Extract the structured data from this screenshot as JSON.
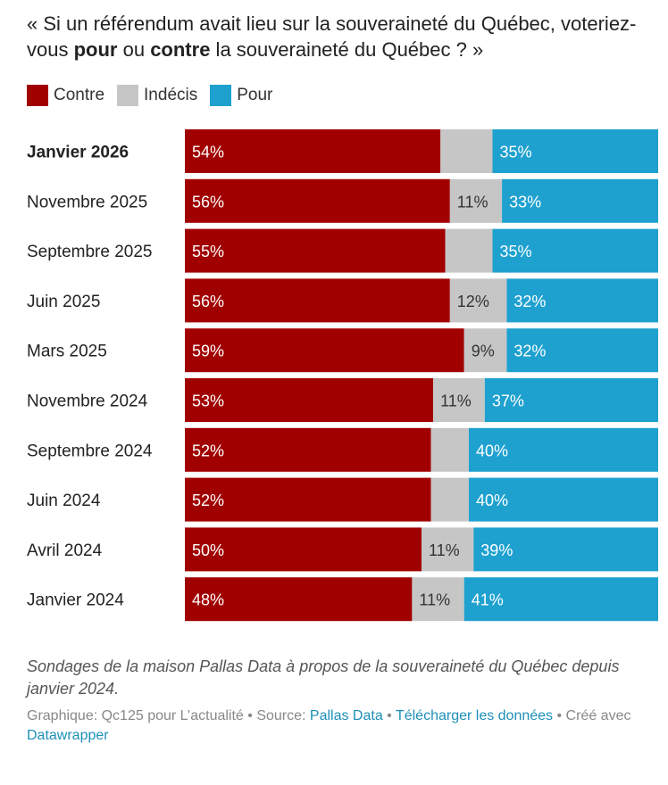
{
  "title": {
    "part1": "« Si un référendum avait lieu sur la souveraineté du Québec, voteriez-vous ",
    "bold1": "pour",
    "part2": " ou ",
    "bold2": "contre",
    "part3": " la souveraineté du Québec ? »"
  },
  "legend": [
    {
      "label": "Contre",
      "color": "#a10000"
    },
    {
      "label": "Indécis",
      "color": "#c6c6c6"
    },
    {
      "label": "Pour",
      "color": "#1ea1cf"
    }
  ],
  "chart_data": {
    "type": "bar",
    "orientation": "horizontal-stacked-100",
    "title": "« Si un référendum avait lieu sur la souveraineté du Québec, voteriez-vous pour ou contre la souveraineté du Québec ? »",
    "categories": [
      "Janvier 2026",
      "Novembre 2025",
      "Septembre 2025",
      "Juin 2025",
      "Mars 2025",
      "Novembre 2024",
      "Septembre 2024",
      "Juin 2024",
      "Avril 2024",
      "Janvier 2024"
    ],
    "highlighted_category": "Janvier 2026",
    "series": [
      {
        "name": "Contre",
        "color": "#a10000",
        "values": [
          54,
          56,
          55,
          56,
          59,
          53,
          52,
          52,
          50,
          48
        ],
        "labels_shown": [
          true,
          true,
          true,
          true,
          true,
          true,
          true,
          true,
          true,
          true
        ]
      },
      {
        "name": "Indécis",
        "color": "#c6c6c6",
        "values": [
          11,
          11,
          10,
          12,
          9,
          11,
          8,
          8,
          11,
          11
        ],
        "labels_shown": [
          false,
          true,
          false,
          true,
          true,
          true,
          false,
          false,
          true,
          true
        ]
      },
      {
        "name": "Pour",
        "color": "#1ea1cf",
        "values": [
          35,
          33,
          35,
          32,
          32,
          37,
          40,
          40,
          39,
          41
        ],
        "labels_shown": [
          true,
          true,
          true,
          true,
          true,
          true,
          true,
          true,
          true,
          true
        ]
      }
    ],
    "value_suffix": "%",
    "xlim": [
      0,
      100
    ],
    "legend_position": "top-left",
    "grid": false
  },
  "description": "Sondages de la maison Pallas Data à propos de la souveraineté du Québec depuis janvier 2024.",
  "footer": {
    "graphic_prefix": "Graphique: Qc125 pour L’actualité",
    "sep1": " • Source: ",
    "source_link": "Pallas Data",
    "sep2": " • ",
    "download_link": "Télécharger les données",
    "sep3": " • Créé avec ",
    "tool_link": "Datawrapper"
  }
}
